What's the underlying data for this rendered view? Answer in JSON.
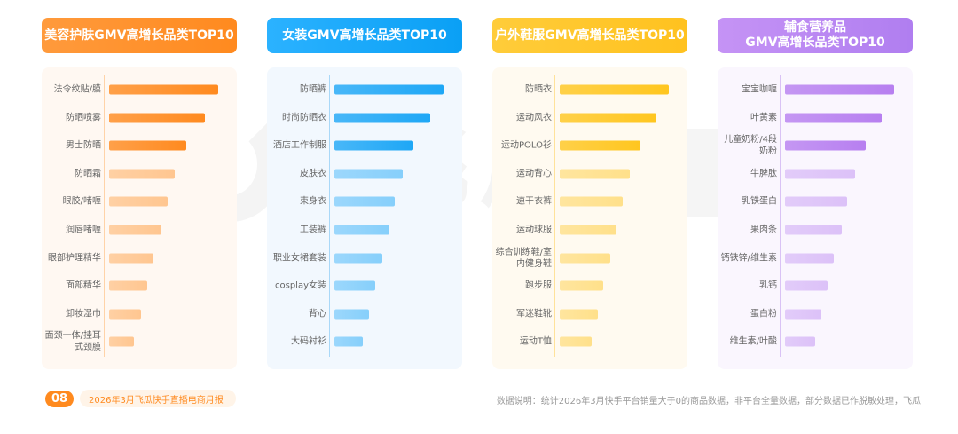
{
  "watermark": {
    "text": "飞瓜",
    "box_text": "快手版"
  },
  "panels": [
    {
      "title": "美容护肤GMV高增长品类TOP10",
      "header_color_start": "#ff9a3c",
      "header_color_end": "#ff8a1f",
      "card_bg": "#fff8f2",
      "axis_color": "#ffd3a8",
      "bar_strong": "#ff8a1f",
      "bar_light": "#ffc690",
      "items": [
        {
          "label": "法令纹贴/膜",
          "value": 100
        },
        {
          "label": "防晒喷雾",
          "value": 88
        },
        {
          "label": "男士防晒",
          "value": 71
        },
        {
          "label": "防晒霜",
          "value": 60
        },
        {
          "label": "眼胶/啫喱",
          "value": 54
        },
        {
          "label": "润唇啫喱",
          "value": 48
        },
        {
          "label": "眼部护理精华",
          "value": 41
        },
        {
          "label": "面部精华",
          "value": 35
        },
        {
          "label": "卸妆湿巾",
          "value": 29
        },
        {
          "label": "面颈一体/挂耳式颈膜",
          "value": 23
        }
      ]
    },
    {
      "title": "女装GMV高增长品类TOP10",
      "header_color_start": "#2bb2ff",
      "header_color_end": "#0aa0f5",
      "card_bg": "#f2f8fe",
      "axis_color": "#a9d8f8",
      "bar_strong": "#1ea7f6",
      "bar_light": "#86cffb",
      "items": [
        {
          "label": "防晒裤",
          "value": 100
        },
        {
          "label": "时尚防晒衣",
          "value": 88
        },
        {
          "label": "酒店工作制服",
          "value": 72
        },
        {
          "label": "皮肤衣",
          "value": 63
        },
        {
          "label": "束身衣",
          "value": 55
        },
        {
          "label": "工装裤",
          "value": 50
        },
        {
          "label": "职业女裙套装",
          "value": 44
        },
        {
          "label": "cosplay女装",
          "value": 37
        },
        {
          "label": "背心",
          "value": 32
        },
        {
          "label": "大码衬衫",
          "value": 26
        }
      ]
    },
    {
      "title": "户外鞋服GMV高增长品类TOP10",
      "header_color_start": "#ffcc3a",
      "header_color_end": "#ffc21f",
      "card_bg": "#fffaf0",
      "axis_color": "#ffe29a",
      "bar_strong": "#ffc61f",
      "bar_light": "#ffe08a",
      "items": [
        {
          "label": "防晒衣",
          "value": 100
        },
        {
          "label": "运动风衣",
          "value": 89
        },
        {
          "label": "运动POLO衫",
          "value": 74
        },
        {
          "label": "运动背心",
          "value": 64
        },
        {
          "label": "速干衣裤",
          "value": 58
        },
        {
          "label": "运动球服",
          "value": 52
        },
        {
          "label": "综合训练鞋/室内健身鞋",
          "value": 46
        },
        {
          "label": "跑步服",
          "value": 40
        },
        {
          "label": "军迷鞋靴",
          "value": 35
        },
        {
          "label": "运动T恤",
          "value": 29
        }
      ]
    },
    {
      "title": "辅食营养品\nGMV高增长品类TOP10",
      "header_color_start": "#c593f5",
      "header_color_end": "#b07ef0",
      "card_bg": "#faf6fe",
      "axis_color": "#d9c2f5",
      "bar_strong": "#b77ff0",
      "bar_light": "#dcc1f8",
      "items": [
        {
          "label": "宝宝咖喱",
          "value": 100
        },
        {
          "label": "叶黄素",
          "value": 89
        },
        {
          "label": "儿童奶粉/4段奶粉",
          "value": 74
        },
        {
          "label": "牛脾肽",
          "value": 64
        },
        {
          "label": "乳铁蛋白",
          "value": 57
        },
        {
          "label": "果肉条",
          "value": 52
        },
        {
          "label": "钙铁锌/维生素",
          "value": 45
        },
        {
          "label": "乳钙",
          "value": 39
        },
        {
          "label": "蛋白粉",
          "value": 33
        },
        {
          "label": "维生素/叶酸",
          "value": 28
        }
      ]
    }
  ],
  "footer": {
    "page_number": "08",
    "report_title": "2026年3月飞瓜快手直播电商月报",
    "note": "数据说明：统计2026年3月快手平台销量大于0的商品数据，非平台全量数据，部分数据已作脱敏处理，飞瓜"
  },
  "chart_data": [
    {
      "type": "bar",
      "orientation": "horizontal",
      "title": "美容护肤GMV高增长品类TOP10",
      "categories": [
        "法令纹贴/膜",
        "防晒喷雾",
        "男士防晒",
        "防晒霜",
        "眼胶/啫喱",
        "润唇啫喱",
        "眼部护理精华",
        "面部精华",
        "卸妆湿巾",
        "面颈一体/挂耳式颈膜"
      ],
      "values": [
        100,
        88,
        71,
        60,
        54,
        48,
        41,
        35,
        29,
        23
      ],
      "xlabel": "",
      "ylabel": "",
      "grid": false,
      "legend": "none"
    },
    {
      "type": "bar",
      "orientation": "horizontal",
      "title": "女装GMV高增长品类TOP10",
      "categories": [
        "防晒裤",
        "时尚防晒衣",
        "酒店工作制服",
        "皮肤衣",
        "束身衣",
        "工装裤",
        "职业女裙套装",
        "cosplay女装",
        "背心",
        "大码衬衫"
      ],
      "values": [
        100,
        88,
        72,
        63,
        55,
        50,
        44,
        37,
        32,
        26
      ],
      "xlabel": "",
      "ylabel": "",
      "grid": false,
      "legend": "none"
    },
    {
      "type": "bar",
      "orientation": "horizontal",
      "title": "户外鞋服GMV高增长品类TOP10",
      "categories": [
        "防晒衣",
        "运动风衣",
        "运动POLO衫",
        "运动背心",
        "速干衣裤",
        "运动球服",
        "综合训练鞋/室内健身鞋",
        "跑步服",
        "军迷鞋靴",
        "运动T恤"
      ],
      "values": [
        100,
        89,
        74,
        64,
        58,
        52,
        46,
        40,
        35,
        29
      ],
      "xlabel": "",
      "ylabel": "",
      "grid": false,
      "legend": "none"
    },
    {
      "type": "bar",
      "orientation": "horizontal",
      "title": "辅食营养品GMV高增长品类TOP10",
      "categories": [
        "宝宝咖喱",
        "叶黄素",
        "儿童奶粉/4段奶粉",
        "牛脾肽",
        "乳铁蛋白",
        "果肉条",
        "钙铁锌/维生素",
        "乳钙",
        "蛋白粉",
        "维生素/叶酸"
      ],
      "values": [
        100,
        89,
        74,
        64,
        57,
        52,
        45,
        39,
        33,
        28
      ],
      "xlabel": "",
      "ylabel": "",
      "grid": false,
      "legend": "none"
    }
  ]
}
